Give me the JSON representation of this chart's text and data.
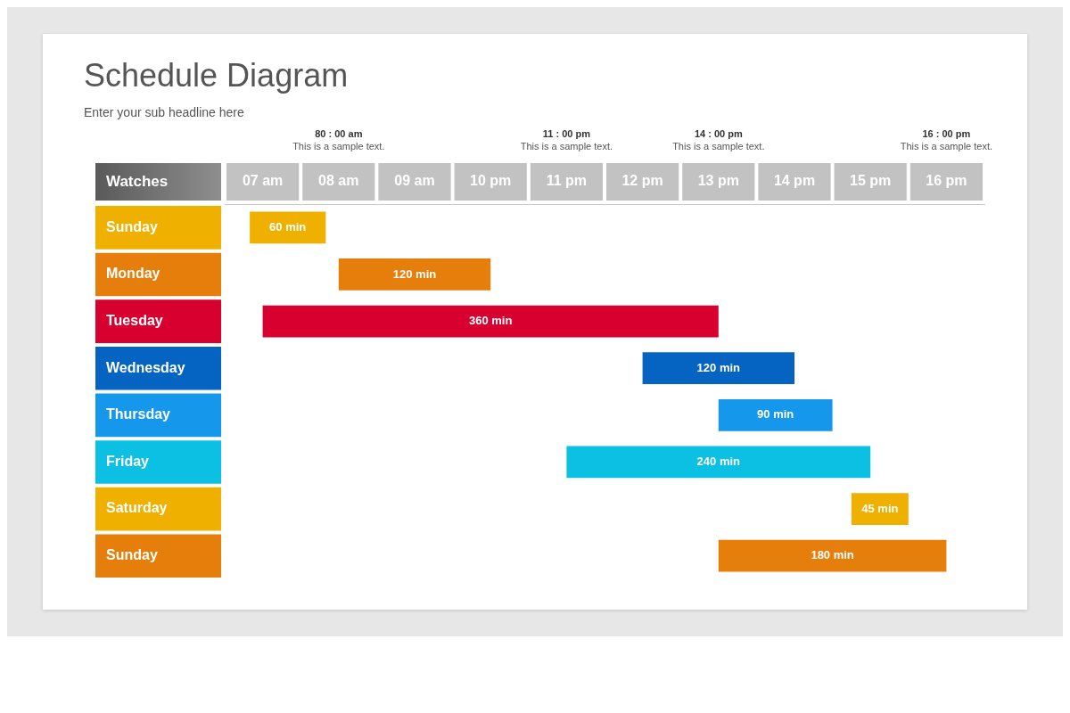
{
  "chart_data": {
    "type": "bar",
    "orientation": "horizontal",
    "title": "Schedule Diagram",
    "subtitle": "Enter your sub headline here",
    "ylabel": "Watches",
    "categories": [
      "Sunday",
      "Monday",
      "Tuesday",
      "Wednesday",
      "Thursday",
      "Friday",
      "Saturday",
      "Sunday"
    ],
    "base": [
      6.83,
      8,
      7,
      12,
      13,
      11,
      14.75,
      13
    ],
    "values": [
      1,
      2,
      6,
      2,
      1.5,
      4,
      0.75,
      3
    ],
    "colors": [
      "#efb000",
      "#e67e0b",
      "#d8002e",
      "#0563c1",
      "#1597eb",
      "#0cc0e3",
      "#efb000",
      "#e67e0b"
    ],
    "xlim": [
      6.5,
      16.5
    ],
    "xticks": [
      {
        "value": 7,
        "label": "07 am"
      },
      {
        "value": 8,
        "label": "08 am"
      },
      {
        "value": 9,
        "label": "09 am"
      },
      {
        "value": 10,
        "label": "10 pm"
      },
      {
        "value": 11,
        "label": "11 pm"
      },
      {
        "value": 12,
        "label": "12 pm"
      },
      {
        "value": 13,
        "label": "13 pm"
      },
      {
        "value": 14,
        "label": "14 pm"
      },
      {
        "value": 15,
        "label": "15 pm"
      },
      {
        "value": 16,
        "label": "16 pm"
      }
    ],
    "annotations": [
      "80 : 00 am\nThis is a sample text.",
      "11 : 00 pm\nThis is a sample text.",
      "14 : 00 pm\nThis is a sample text.",
      "16 : 00 pm\nThis is a sample text.",
      "60 min",
      "120 min",
      "360 min",
      "120 min",
      "90 min",
      "240 min",
      "45 min",
      "180 min"
    ],
    "grid": false,
    "legend": false
  }
}
